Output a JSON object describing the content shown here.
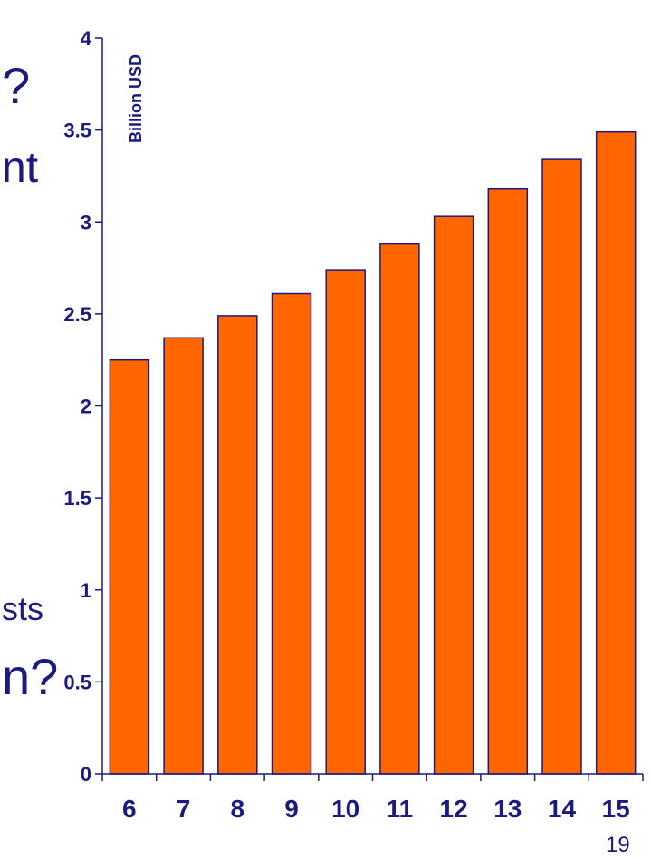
{
  "slide": {
    "fragment_1": "?",
    "fragment_2": "nt",
    "fragment_3": "sts",
    "fragment_4": "n?",
    "page_number": "19"
  },
  "colors": {
    "bar_fill": "#ff6600",
    "bar_stroke": "#1a1a80",
    "text": "#1a1a80",
    "axis": "#1a1a80"
  },
  "chart_data": {
    "type": "bar",
    "categories": [
      "6",
      "7",
      "8",
      "9",
      "10",
      "11",
      "12",
      "13",
      "14",
      "15"
    ],
    "values": [
      2.25,
      2.37,
      2.49,
      2.61,
      2.74,
      2.88,
      3.03,
      3.18,
      3.34,
      3.49
    ],
    "title": "",
    "xlabel": "",
    "ylabel": "Billion USD",
    "ylim": [
      0,
      4
    ],
    "yticks": [
      "0",
      "0.5",
      "1",
      "1.5",
      "2",
      "2.5",
      "3",
      "3.5",
      "4"
    ],
    "grid": false
  }
}
